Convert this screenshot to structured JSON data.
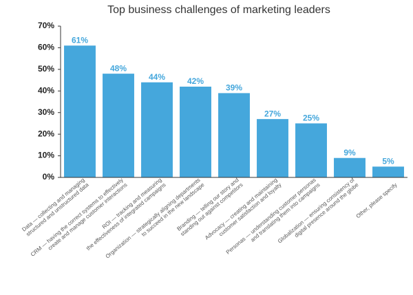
{
  "chart_data": {
    "type": "bar",
    "title": "Top business challenges of marketing leaders",
    "categories": [
      "Data — collecting and managing\nstructured and unstructured data",
      "CRM — having the correct systems to effectively\ncreate and manage customer interactions",
      "ROI — tracking and measuring\nthe effectiveness of integrated campaigns",
      "Organization — strategically aligning departments\nto succeed in the new landscape",
      "Branding — telling our story and\nstanding out against competitors",
      "Advocacy — creating and maintaining\ncustomer satisfaction and loyalty",
      "Personas — understanding customer personas\nand translating them into campaigns",
      "Globalization — ensuring consistency of\ndigital presence around the globe",
      "Other, please specify"
    ],
    "values": [
      61,
      48,
      44,
      42,
      39,
      27,
      25,
      9,
      5
    ],
    "value_labels": [
      "61%",
      "48%",
      "44%",
      "42%",
      "39%",
      "27%",
      "25%",
      "9%",
      "5%"
    ],
    "color": "#45a7dc",
    "ylim": [
      0,
      70
    ],
    "yticks": [
      {
        "value": 0,
        "label": "0%"
      },
      {
        "value": 10,
        "label": "10%"
      },
      {
        "value": 20,
        "label": "20%"
      },
      {
        "value": 30,
        "label": "30%"
      },
      {
        "value": 40,
        "label": "40%"
      },
      {
        "value": 50,
        "label": "50%"
      },
      {
        "value": 60,
        "label": "60%"
      },
      {
        "value": 70,
        "label": "70%"
      }
    ]
  }
}
